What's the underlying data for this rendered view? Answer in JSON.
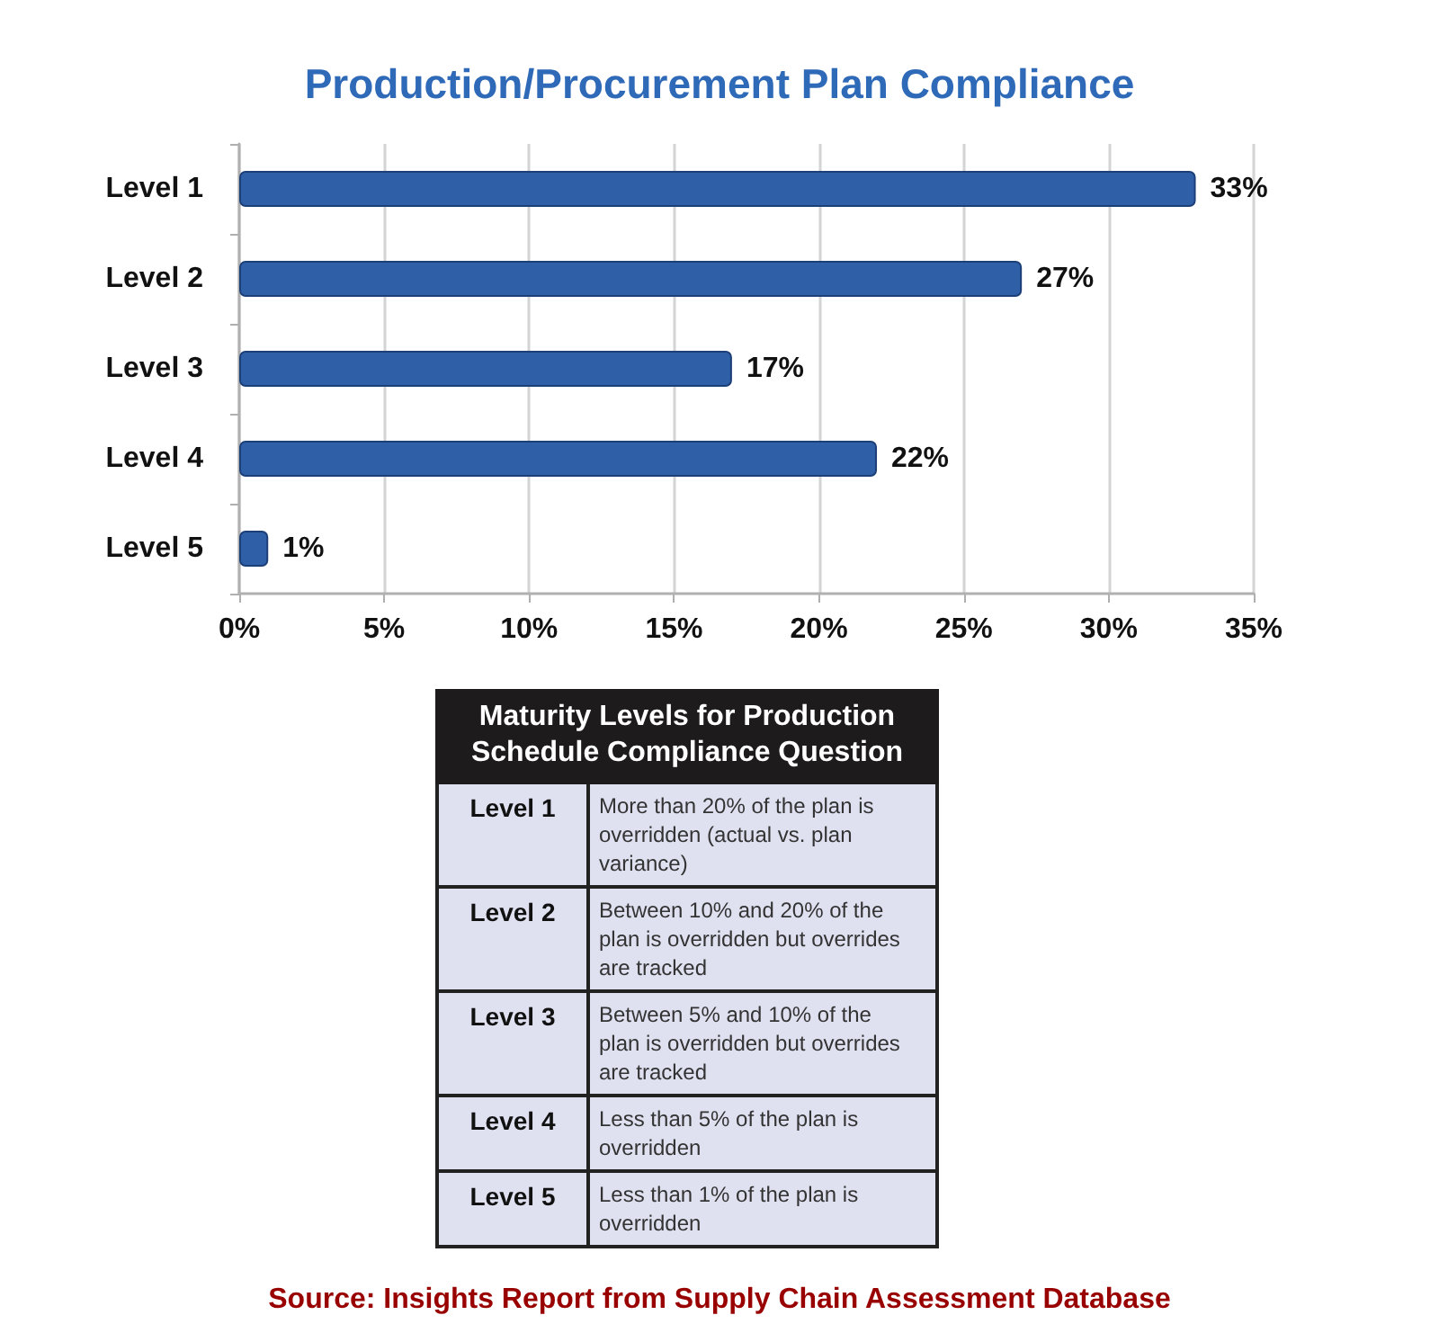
{
  "chart_data": [
    {
      "type": "bar",
      "orientation": "horizontal",
      "title": "Production/Procurement Plan Compliance",
      "categories": [
        "Level 1",
        "Level 2",
        "Level 3",
        "Level 4",
        "Level 5"
      ],
      "values": [
        33,
        27,
        17,
        22,
        1
      ],
      "value_labels": [
        "33%",
        "27%",
        "17%",
        "22%",
        "1%"
      ],
      "color": "#2f5fa7",
      "xlim": [
        0,
        35
      ],
      "xticks": [
        {
          "value": 0,
          "label": "0%"
        },
        {
          "value": 5,
          "label": "5%"
        },
        {
          "value": 10,
          "label": "10%"
        },
        {
          "value": 15,
          "label": "15%"
        },
        {
          "value": 20,
          "label": "20%"
        },
        {
          "value": 25,
          "label": "25%"
        },
        {
          "value": 30,
          "label": "30%"
        },
        {
          "value": 35,
          "label": "35%"
        }
      ],
      "grid": "x"
    },
    {
      "type": "other",
      "title": "Maturity Levels for Production Schedule Compliance Question",
      "categories": [
        "Level 1",
        "Level 2",
        "Level 3",
        "Level 4",
        "Level 5"
      ],
      "annotations": [
        "More than 20% of the plan is overridden (actual vs. plan variance)",
        "Between 10% and 20% of the plan is overridden but overrides are tracked",
        "Between 5% and 10% of the plan is overridden but overrides are tracked",
        "Less than 5% of the plan is overridden",
        "Less than 1% of the plan is overridden",
        "Source: Insights Report from Supply Chain Assessment Database"
      ]
    }
  ]
}
